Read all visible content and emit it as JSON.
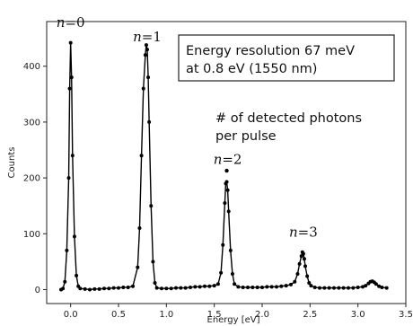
{
  "chart_data": {
    "type": "line",
    "xlabel": "Energy [eV]",
    "ylabel": "Counts",
    "xlim": [
      -0.25,
      3.5
    ],
    "ylim": [
      -25,
      480
    ],
    "xticks": [
      0.0,
      0.5,
      1.0,
      1.5,
      2.0,
      2.5,
      3.0,
      3.5
    ],
    "xtick_labels": [
      "0.0",
      "0.5",
      "1.0",
      "1.5",
      "2.0",
      "2.5",
      "3.0",
      "3.5"
    ],
    "yticks": [
      0,
      100,
      200,
      300,
      400
    ],
    "ytick_labels": [
      "0",
      "100",
      "200",
      "300",
      "400"
    ],
    "series": [
      {
        "marker": "dot",
        "color": "#000000",
        "x": [
          -0.1,
          -0.08,
          -0.06,
          -0.04,
          -0.02,
          -0.01,
          0.0,
          0.01,
          0.02,
          0.04,
          0.06,
          0.08,
          0.1,
          0.15,
          0.2,
          0.25,
          0.3,
          0.35,
          0.4,
          0.45,
          0.5,
          0.55,
          0.6,
          0.65,
          0.7,
          0.72,
          0.74,
          0.76,
          0.78,
          0.79,
          0.8,
          0.81,
          0.82,
          0.84,
          0.86,
          0.88,
          0.9,
          0.95,
          1.0,
          1.05,
          1.1,
          1.15,
          1.2,
          1.25,
          1.3,
          1.35,
          1.4,
          1.45,
          1.5,
          1.54,
          1.57,
          1.59,
          1.61,
          1.62,
          1.63,
          1.64,
          1.65,
          1.67,
          1.69,
          1.71,
          1.75,
          1.8,
          1.85,
          1.9,
          1.95,
          2.0,
          2.05,
          2.1,
          2.15,
          2.2,
          2.25,
          2.3,
          2.34,
          2.37,
          2.39,
          2.41,
          2.42,
          2.43,
          2.44,
          2.45,
          2.47,
          2.49,
          2.51,
          2.55,
          2.6,
          2.65,
          2.7,
          2.75,
          2.8,
          2.85,
          2.9,
          2.95,
          3.0,
          3.05,
          3.08,
          3.11,
          3.13,
          3.15,
          3.17,
          3.19,
          3.22,
          3.25,
          3.3
        ],
        "y": [
          0,
          2,
          14,
          70,
          200,
          360,
          442,
          380,
          240,
          95,
          25,
          6,
          2,
          1,
          0,
          1,
          1,
          2,
          2,
          3,
          3,
          4,
          4,
          6,
          40,
          110,
          240,
          360,
          420,
          438,
          430,
          380,
          300,
          150,
          50,
          12,
          3,
          2,
          2,
          2,
          3,
          3,
          3,
          4,
          5,
          5,
          6,
          6,
          7,
          10,
          30,
          80,
          155,
          190,
          193,
          178,
          140,
          70,
          28,
          10,
          5,
          4,
          4,
          4,
          4,
          4,
          5,
          5,
          5,
          6,
          7,
          9,
          14,
          28,
          46,
          60,
          67,
          64,
          55,
          42,
          24,
          12,
          7,
          4,
          3,
          3,
          3,
          3,
          3,
          3,
          3,
          3,
          4,
          5,
          7,
          11,
          14,
          15,
          13,
          10,
          6,
          4,
          3
        ]
      }
    ],
    "annotations": [
      {
        "text_prefix": "n",
        "text_suffix": "=0",
        "x": 0.0,
        "y": 470
      },
      {
        "text_prefix": "n",
        "text_suffix": "=1",
        "x": 0.8,
        "y": 445
      },
      {
        "text_prefix": "n",
        "text_suffix": "=2",
        "x": 1.64,
        "y": 225
      },
      {
        "text_prefix": "n",
        "text_suffix": "=3",
        "x": 2.43,
        "y": 95
      }
    ],
    "outlier_point": {
      "x": 1.63,
      "y": 213
    },
    "box_lines": [
      "Energy resolution 67 meV",
      "at 0.8 eV (1550 nm)"
    ],
    "note_lines": [
      "# of detected photons",
      "per pulse"
    ]
  }
}
